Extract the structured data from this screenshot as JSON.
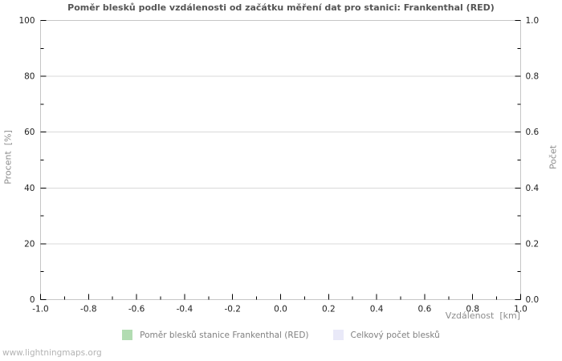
{
  "watermark": "www.lightningmaps.org",
  "colors": {
    "background": "#ffffff",
    "plot_border": "#c6c6c6",
    "grid": "#d9d9d9",
    "tick": "#000000",
    "title_text": "#555555",
    "axis_label_text": "#8c8c8c",
    "tick_label_text": "#1f1f1f",
    "legend_text": "#808080",
    "watermark_text": "#b3b3b3",
    "series_frankenthal": "#b2dcb2",
    "series_total": "#e9e9f8"
  },
  "chart_data": {
    "type": "bar",
    "title": "Poměr blesků podle vzdálenosti od začátku měření dat pro stanici: Frankenthal (RED)",
    "xlabel": "Vzdálenost  [km]",
    "ylabel_left": "Procent  [%]",
    "ylabel_right": "Počet",
    "xlim": [
      -1.0,
      1.0
    ],
    "ylim_left": [
      0,
      100
    ],
    "ylim_right": [
      0.0,
      1.0
    ],
    "xticks": [
      -1.0,
      -0.8,
      -0.6,
      -0.4,
      -0.2,
      0.0,
      0.2,
      0.4,
      0.6,
      0.8,
      1.0
    ],
    "xtick_labels": [
      "-1.0",
      "-0.8",
      "-0.6",
      "-0.4",
      "-0.2",
      "0.0",
      "0.2",
      "0.4",
      "0.6",
      "0.8",
      "1.0"
    ],
    "minor_xtick_step": 0.1,
    "yticks_left": [
      0,
      20,
      40,
      60,
      80,
      100
    ],
    "ytick_left_labels": [
      "0",
      "20",
      "40",
      "60",
      "80",
      "100"
    ],
    "minor_ytick_left_step": 10,
    "yticks_right": [
      0.0,
      0.2,
      0.4,
      0.6,
      0.8,
      1.0
    ],
    "ytick_right_labels": [
      "0.0",
      "0.2",
      "0.4",
      "0.6",
      "0.8",
      "1.0"
    ],
    "minor_ytick_right_step": 0.1,
    "grid": "horizontal-major",
    "legend_position": "bottom-center",
    "series": [
      {
        "name": "Poměr blesků stanice Frankenthal (RED)",
        "color": "#b2dcb2",
        "values": []
      },
      {
        "name": "Celkový počet blesků",
        "color": "#e9e9f8",
        "values": []
      }
    ]
  }
}
